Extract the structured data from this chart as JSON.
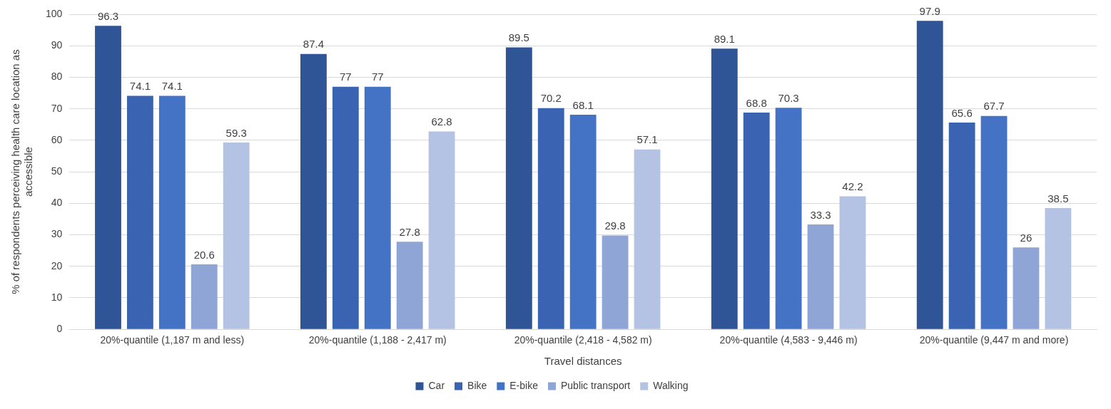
{
  "chart_data": {
    "type": "bar",
    "categories": [
      "20%-quantile (1,187 m and less)",
      "20%-quantile (1,188 - 2,417 m)",
      "20%-quantile (2,418 - 4,582 m)",
      "20%-quantile (4,583 - 9,446 m)",
      "20%-quantile (9,447 m and more)"
    ],
    "series": [
      {
        "name": "Car",
        "color": "#2f5597",
        "values": [
          96.3,
          87.4,
          89.5,
          89.1,
          97.9
        ]
      },
      {
        "name": "Bike",
        "color": "#3a64b2",
        "values": [
          74.1,
          77,
          70.2,
          68.8,
          65.6
        ]
      },
      {
        "name": "E-bike",
        "color": "#4472c4",
        "values": [
          74.1,
          77,
          68.1,
          70.3,
          67.7
        ]
      },
      {
        "name": "Public transport",
        "color": "#8fa5d6",
        "values": [
          20.6,
          27.8,
          29.8,
          33.3,
          26
        ]
      },
      {
        "name": "Walking",
        "color": "#b4c2e4",
        "values": [
          59.3,
          62.8,
          57.1,
          42.2,
          38.5
        ]
      }
    ],
    "xlabel": "Travel distances",
    "ylabel": "% of respondents perceiving health care location as accessible",
    "ylim": [
      0,
      100
    ],
    "yticks": [
      0,
      10,
      20,
      30,
      40,
      50,
      60,
      70,
      80,
      90,
      100
    ],
    "grid": "y",
    "legend": "bottom",
    "data_labels": true
  }
}
